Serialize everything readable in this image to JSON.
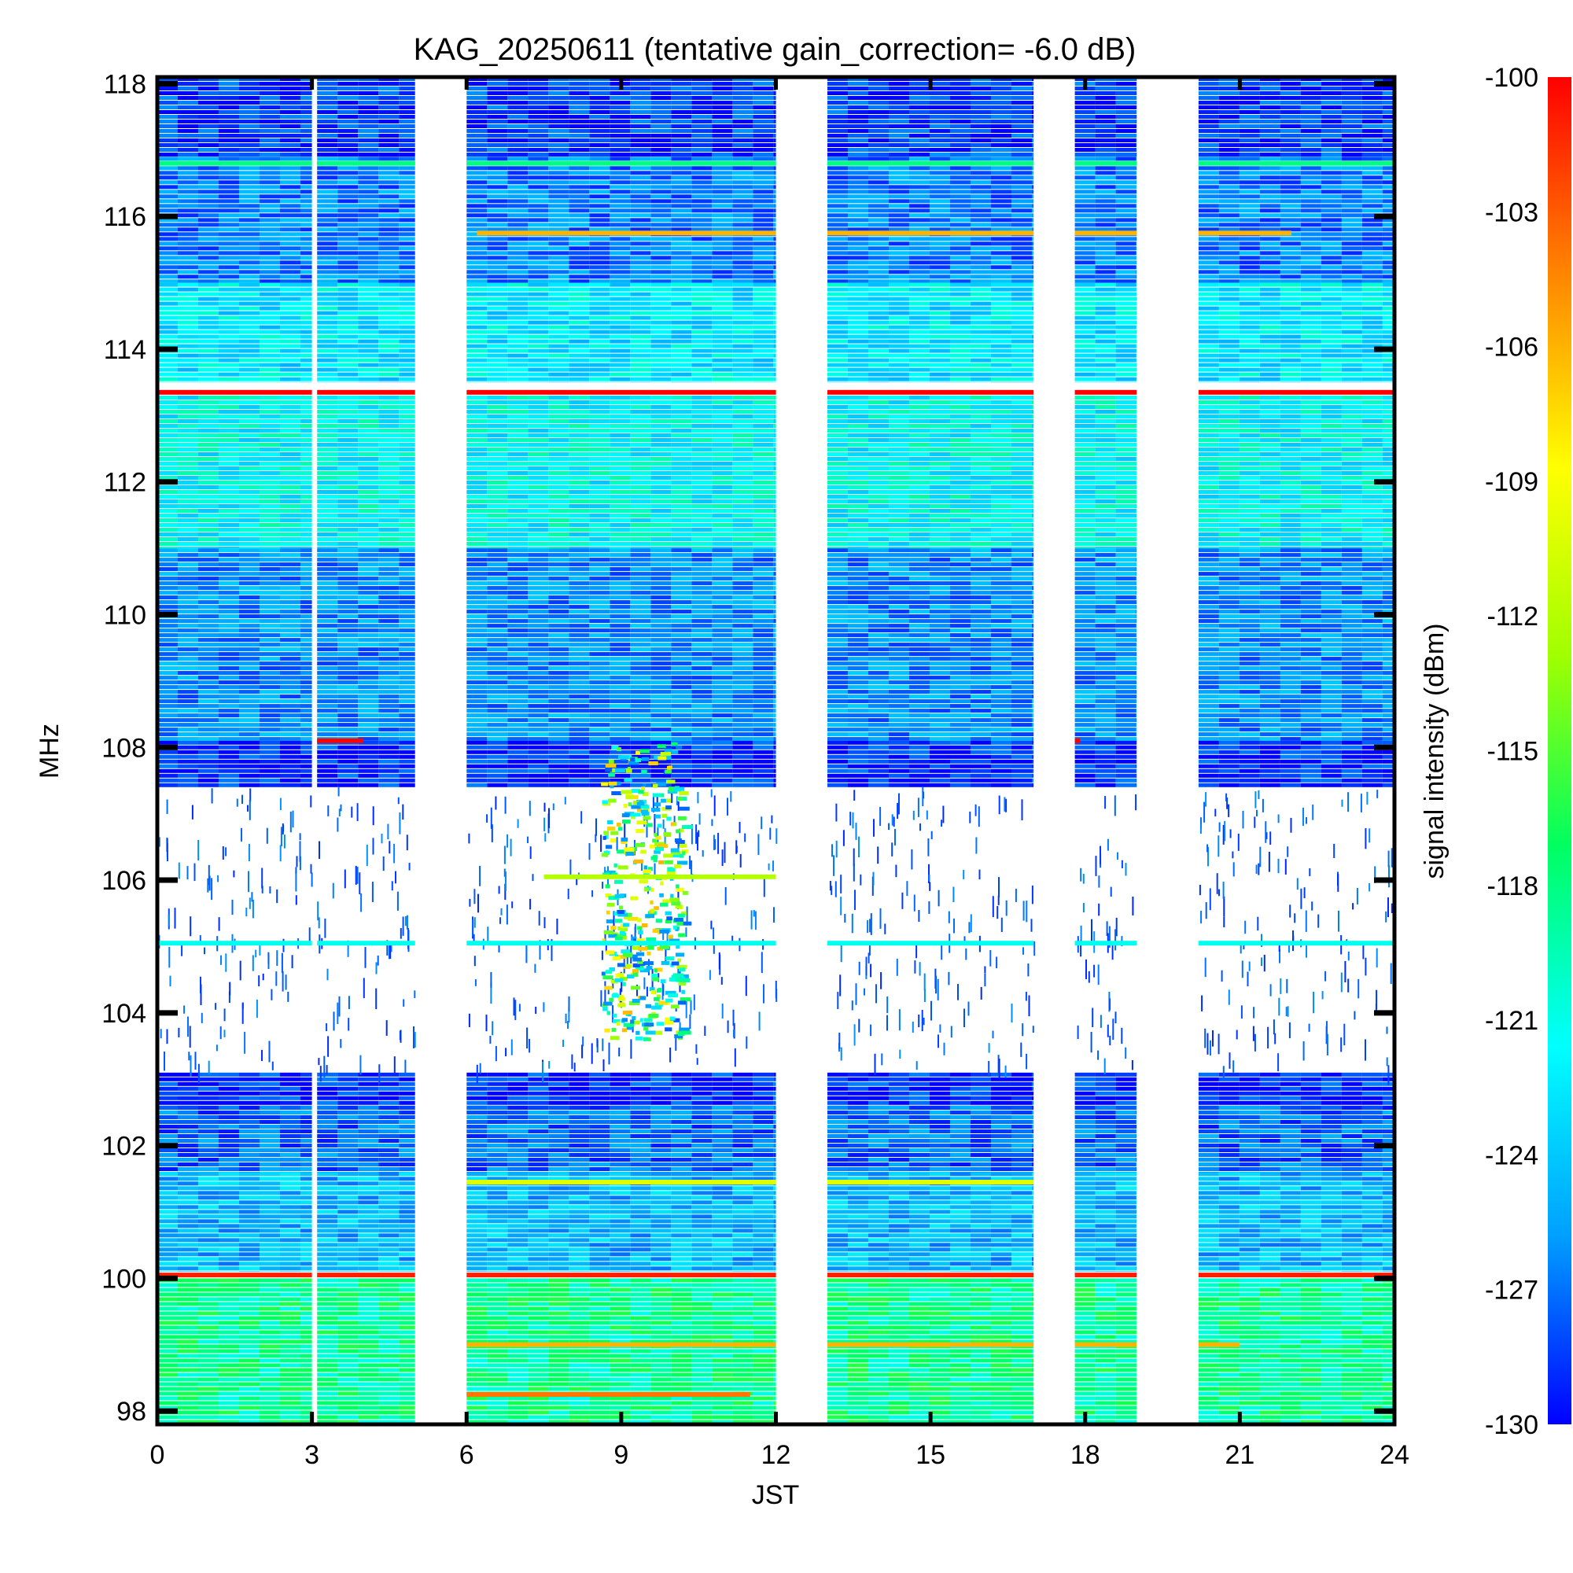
{
  "chart_data": {
    "type": "heatmap",
    "title": "KAG_20250611 (tentative gain_correction= -6.0 dB)",
    "xlabel": "JST",
    "ylabel": "MHz",
    "colorbar_label": "signal intensity (dBm)",
    "xlim": [
      0,
      24
    ],
    "ylim": [
      97.8,
      118.1
    ],
    "zlim": [
      -130,
      -100
    ],
    "x_ticks": [
      "0",
      "3",
      "6",
      "9",
      "12",
      "15",
      "18",
      "21",
      "24"
    ],
    "y_ticks": [
      "98",
      "100",
      "102",
      "104",
      "106",
      "108",
      "110",
      "112",
      "114",
      "116",
      "118"
    ],
    "colorbar_ticks": [
      "-100",
      "-103",
      "-106",
      "-109",
      "-112",
      "-115",
      "-118",
      "-121",
      "-124",
      "-127",
      "-130"
    ],
    "colormap": [
      "#0000ff",
      "#00a0ff",
      "#00ffff",
      "#00ff60",
      "#a0ff00",
      "#ffff00",
      "#ff8000",
      "#ff0000"
    ],
    "data_segments_jst": [
      [
        0,
        3.0
      ],
      [
        3.1,
        5.0
      ],
      [
        6.0,
        12.0
      ],
      [
        13.0,
        17.0
      ],
      [
        17.8,
        19.0
      ],
      [
        20.2,
        24.0
      ]
    ],
    "background_bands": [
      {
        "mhz": [
          116.9,
          118.1
        ],
        "dbm": -128.5
      },
      {
        "mhz": [
          115.0,
          116.9
        ],
        "dbm": -126.5
      },
      {
        "mhz": [
          113.5,
          115.0
        ],
        "dbm": -122.5
      },
      {
        "mhz": [
          111.0,
          113.3
        ],
        "dbm": -121.5
      },
      {
        "mhz": [
          108.1,
          111.0
        ],
        "dbm": -126.0
      },
      {
        "mhz": [
          107.4,
          108.1
        ],
        "dbm": -129.0
      },
      {
        "mhz": [
          102.6,
          103.1
        ],
        "dbm": -129.0
      },
      {
        "mhz": [
          101.6,
          102.6
        ],
        "dbm": -127.0
      },
      {
        "mhz": [
          100.1,
          101.6
        ],
        "dbm": -124.5
      },
      {
        "mhz": [
          97.8,
          100.0
        ],
        "dbm": -118.5
      }
    ],
    "carrier_lines": [
      {
        "mhz": 116.8,
        "dbm": -118.0,
        "jst": [
          0,
          24
        ]
      },
      {
        "mhz": 115.75,
        "dbm": -106.0,
        "jst": [
          6.2,
          22.0
        ]
      },
      {
        "mhz": 113.35,
        "dbm": -100.0,
        "jst": [
          0,
          24
        ]
      },
      {
        "mhz": 108.1,
        "dbm": -100.0,
        "jst": [
          3.0,
          4.0
        ]
      },
      {
        "mhz": 108.1,
        "dbm": -100.0,
        "jst": [
          17.0,
          17.9
        ]
      },
      {
        "mhz": 105.05,
        "dbm": -121.0,
        "jst": [
          0,
          24
        ]
      },
      {
        "mhz": 100.05,
        "dbm": -101.0,
        "jst": [
          0,
          24
        ]
      },
      {
        "mhz": 106.05,
        "dbm": -112.0,
        "jst": [
          7.5,
          12.0
        ]
      },
      {
        "mhz": 101.45,
        "dbm": -110.0,
        "jst": [
          6.0,
          17.0
        ]
      },
      {
        "mhz": 99.0,
        "dbm": -106.0,
        "jst": [
          6.0,
          21.0
        ]
      },
      {
        "mhz": 98.25,
        "dbm": -104.0,
        "jst": [
          6.0,
          11.5
        ]
      }
    ],
    "enhanced_region": {
      "jst": [
        8.6,
        10.2
      ],
      "mhz": [
        103.6,
        108.1
      ],
      "dbm": -110.0
    }
  }
}
